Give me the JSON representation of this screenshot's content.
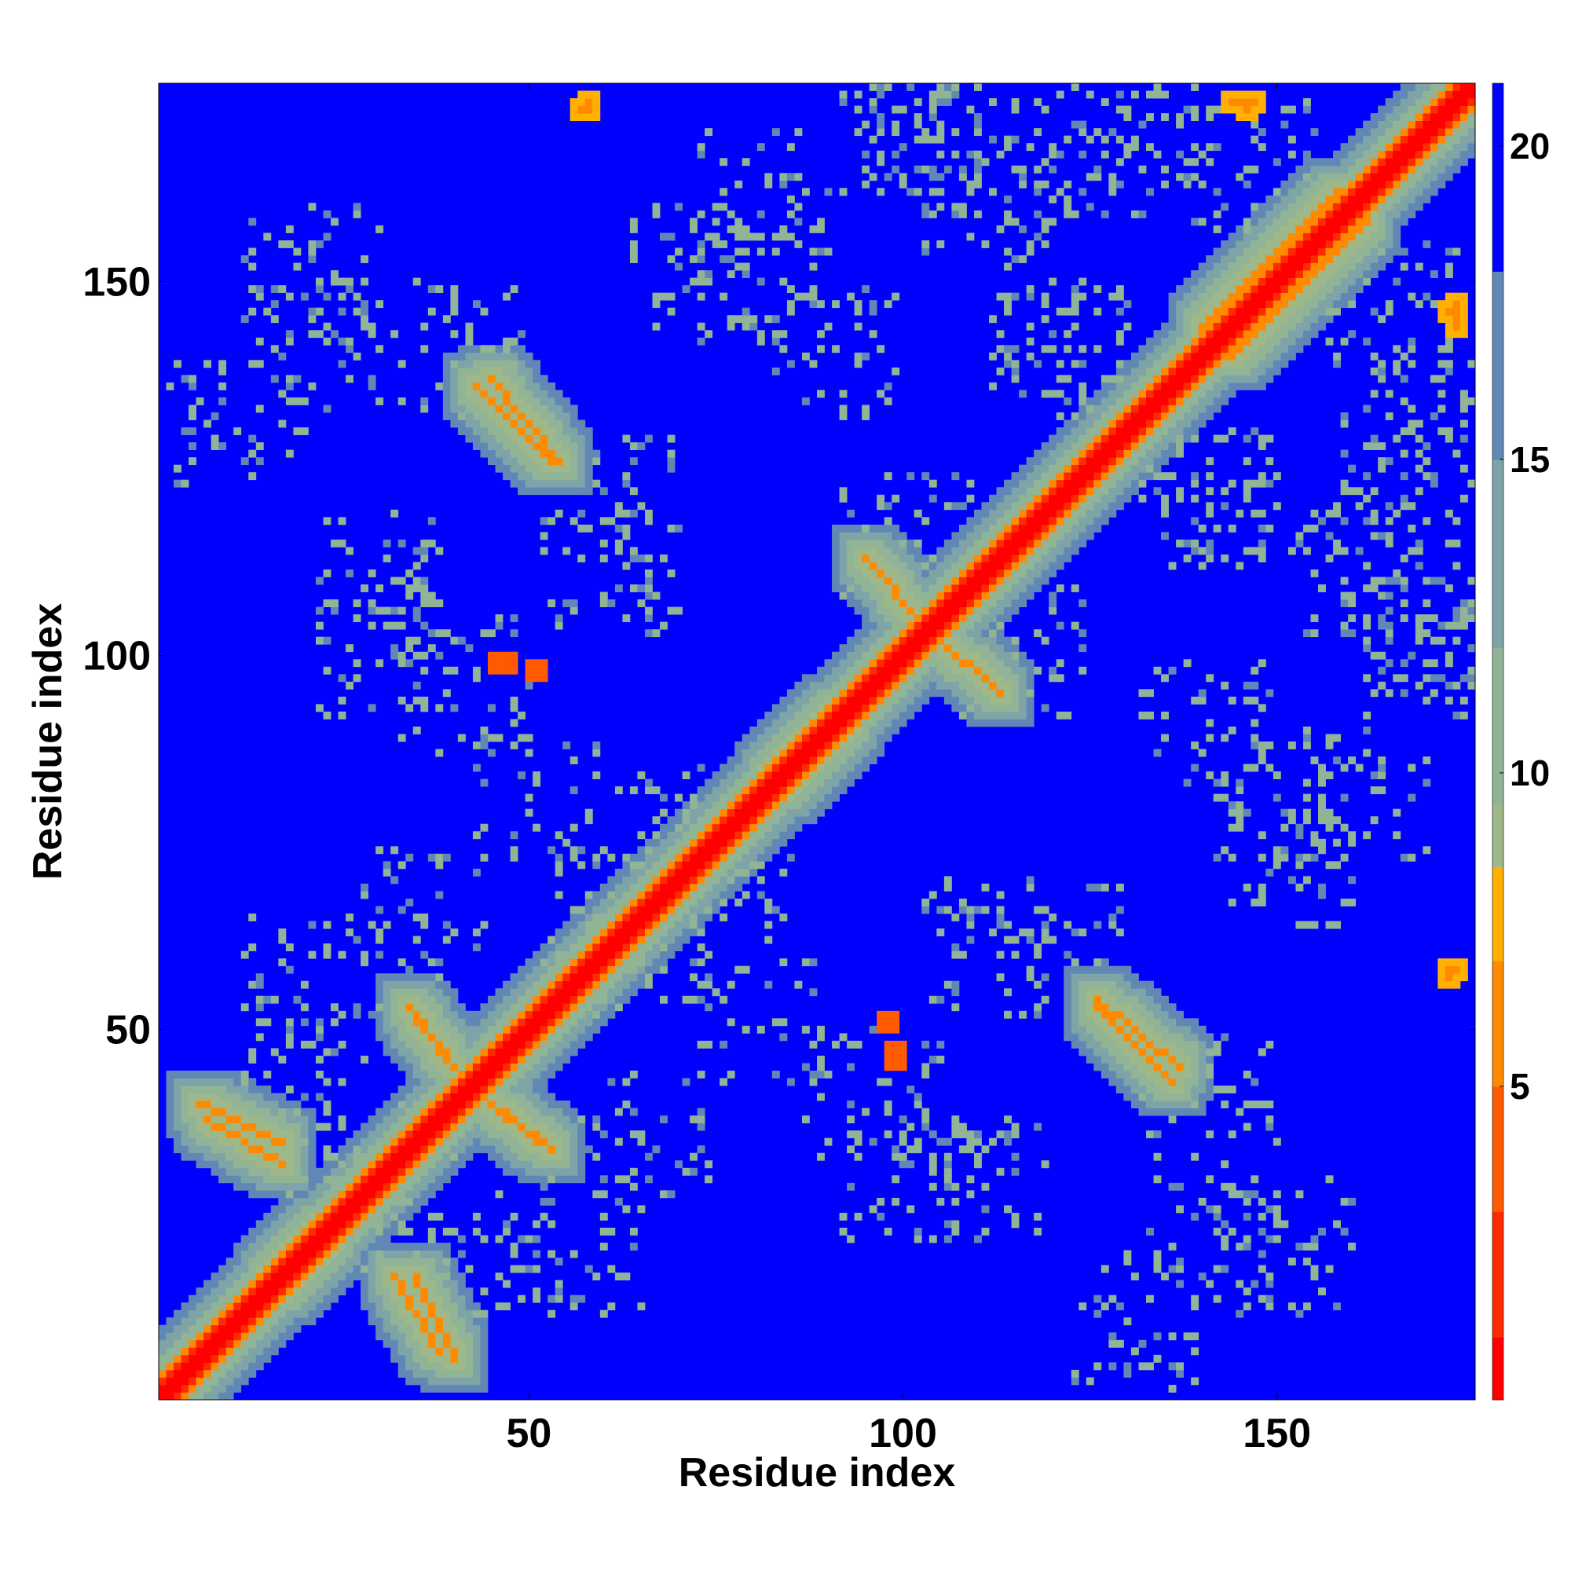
{
  "chart_data": {
    "type": "heatmap",
    "title": "",
    "xlabel": "Residue index",
    "ylabel": "Residue index",
    "n_residues": 176,
    "xlim": [
      1,
      176
    ],
    "ylim": [
      1,
      176
    ],
    "x_ticks": [
      50,
      100,
      150
    ],
    "y_ticks": [
      50,
      100,
      150
    ],
    "colorbar": {
      "ticks": [
        5,
        10,
        15,
        20
      ],
      "range": [
        0,
        21
      ],
      "colors": [
        {
          "value": 1,
          "color": "#ff0000"
        },
        {
          "value": 3,
          "color": "#ff2a00"
        },
        {
          "value": 5,
          "color": "#ff5a00"
        },
        {
          "value": 7,
          "color": "#ff8a00"
        },
        {
          "value": 8.5,
          "color": "#ffb000"
        },
        {
          "value": 9.5,
          "color": "#9fb88a"
        },
        {
          "value": 12,
          "color": "#92b496"
        },
        {
          "value": 15,
          "color": "#7ea4a8"
        },
        {
          "value": 18,
          "color": "#6188b4"
        },
        {
          "value": 21,
          "color": "#0000ff"
        }
      ]
    },
    "background_value": 21,
    "diagonal_band": {
      "center_value": 1,
      "width": 3
    },
    "contact_features": [
      {
        "kind": "antiparallel",
        "start": [
          6,
          40
        ],
        "end": [
          17,
          35
        ],
        "value": 7
      },
      {
        "kind": "antiparallel",
        "start": [
          32,
          17
        ],
        "end": [
          38,
          7
        ],
        "value": 7
      },
      {
        "kind": "antiparallel",
        "start": [
          34,
          53
        ],
        "end": [
          39,
          46
        ],
        "value": 7
      },
      {
        "kind": "antiparallel",
        "start": [
          45,
          40
        ],
        "end": [
          53,
          34
        ],
        "value": 7
      },
      {
        "kind": "antiparallel",
        "start": [
          43,
          136
        ],
        "end": [
          53,
          126
        ],
        "value": 6
      },
      {
        "kind": "antiparallel",
        "start": [
          96,
          112
        ],
        "end": [
          102,
          105
        ],
        "value": 6
      },
      {
        "kind": "antiparallel",
        "start": [
          104,
          103
        ],
        "end": [
          113,
          95
        ],
        "value": 6
      },
      {
        "kind": "antiparallel",
        "start": [
          126,
          54
        ],
        "end": [
          137,
          45
        ],
        "value": 6
      },
      {
        "kind": "parallel",
        "start": [
          82,
          84
        ],
        "end": [
          91,
          93
        ],
        "value": 7
      },
      {
        "kind": "parallel",
        "start": [
          15,
          17
        ],
        "end": [
          22,
          24
        ],
        "value": 7
      },
      {
        "kind": "parallel",
        "start": [
          140,
          144
        ],
        "end": [
          158,
          162
        ],
        "value": 7
      },
      {
        "kind": "spot",
        "start": [
          57,
          173
        ],
        "end": [
          58,
          173
        ],
        "value": 7
      },
      {
        "kind": "spot",
        "start": [
          173,
          58
        ],
        "end": [
          174,
          58
        ],
        "value": 7
      },
      {
        "kind": "spot",
        "start": [
          145,
          174
        ],
        "end": [
          147,
          174
        ],
        "value": 7
      },
      {
        "kind": "spot",
        "start": [
          173,
          146
        ],
        "end": [
          174,
          144
        ],
        "value": 7
      },
      {
        "kind": "spot",
        "start": [
          98,
          51
        ],
        "end": [
          98,
          51
        ],
        "value": 4
      },
      {
        "kind": "spot",
        "start": [
          46,
          99
        ],
        "end": [
          47,
          99
        ],
        "value": 4
      }
    ]
  }
}
